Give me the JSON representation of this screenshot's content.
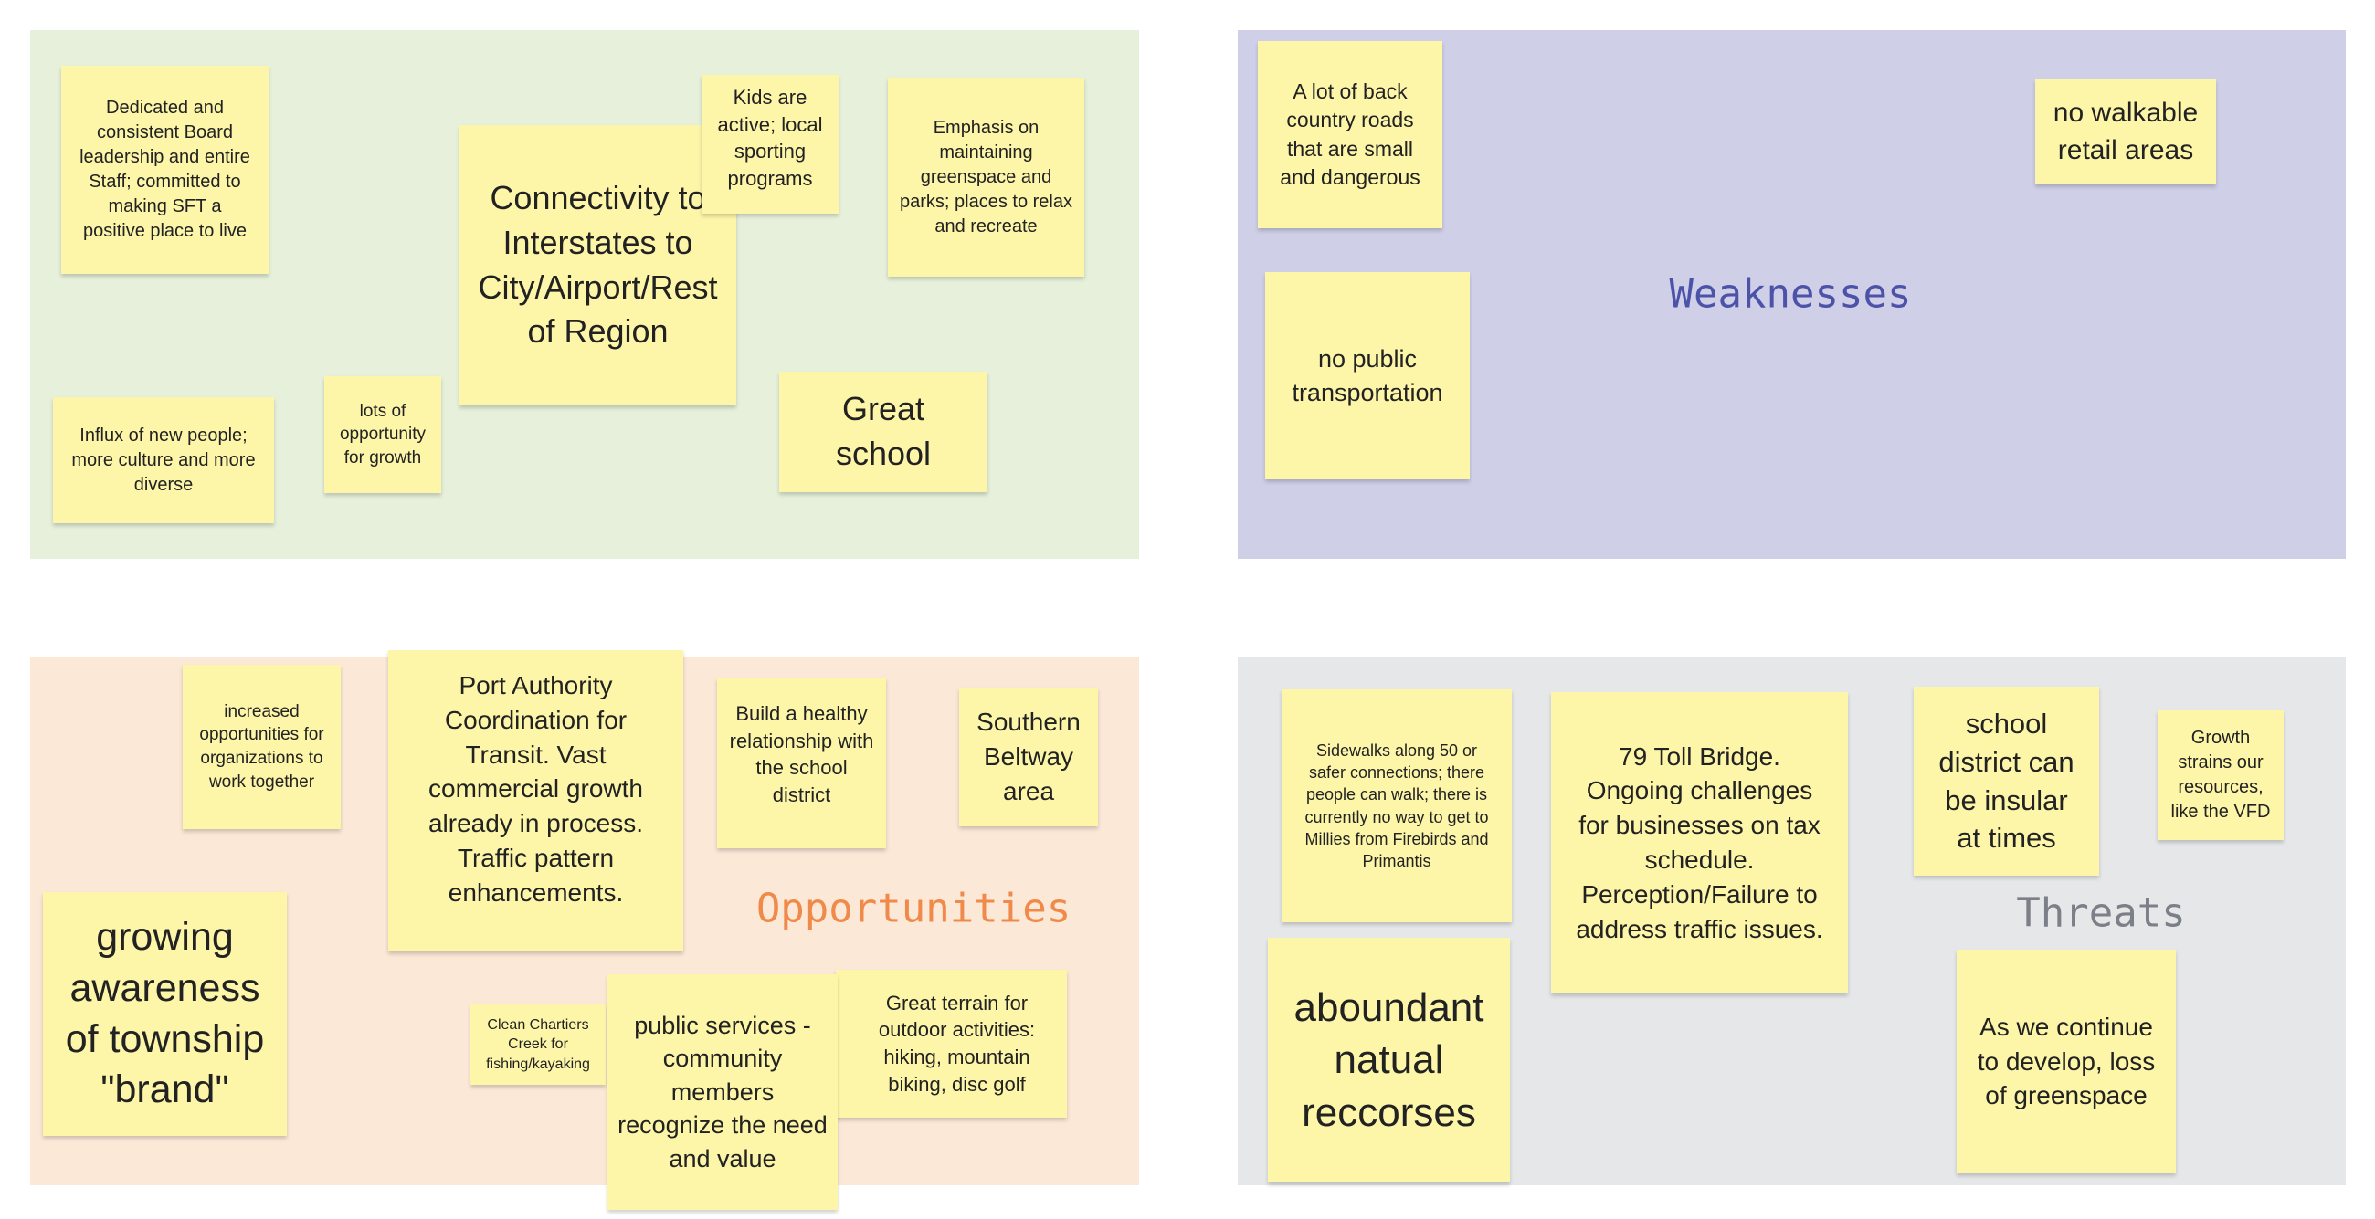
{
  "colors": {
    "strengths_bg": "#e6f0da",
    "weaknesses_bg": "#cfcfe8",
    "opportunities_bg": "#fce8d6",
    "threats_bg": "#e6e7e9",
    "sticky_note": "#fdf6a9",
    "weaknesses_title": "#4c52a8",
    "opportunities_title": "#f08a4b",
    "threats_title": "#7b7f88"
  },
  "strengths": {
    "notes": [
      "Dedicated and consistent Board leadership and entire Staff; committed to making SFT a positive place to live",
      "Connectivity to Interstates to City/Airport/Rest of Region",
      "Kids are active; local sporting programs",
      "Emphasis on maintaining greenspace and parks; places to relax and recreate",
      "Influx of new people; more culture and more diverse",
      "lots of opportunity for growth",
      "Great school"
    ]
  },
  "weaknesses": {
    "title": "Weaknesses",
    "notes": [
      "A lot of back country roads that are small and dangerous",
      "no walkable retail areas",
      "no public transportation"
    ]
  },
  "opportunities": {
    "title": "Opportunities",
    "notes": [
      "increased opportunities for organizations to work together",
      "Port Authority Coordination for Transit.  Vast commercial growth already in process. Traffic pattern enhancements.",
      "Build a healthy relationship with the school district",
      "Southern Beltway area",
      "growing awareness of township \"brand\"",
      "Clean Chartiers Creek for fishing/kayaking",
      "Great terrain for outdoor activities: hiking, mountain biking, disc golf",
      "public services - community members recognize the need and value"
    ]
  },
  "threats": {
    "title": "Threats",
    "notes": [
      "Sidewalks along 50 or safer connections; there people can walk; there is currently no way to get to Millies from Firebirds and Primantis",
      "79 Toll Bridge. Ongoing challenges for businesses on tax schedule. Perception/Failure to address traffic issues.",
      "school district can be insular at times",
      "Growth strains our resources, like the VFD",
      "aboundant natual reccorses",
      "As we continue to develop, loss of greenspace"
    ]
  }
}
